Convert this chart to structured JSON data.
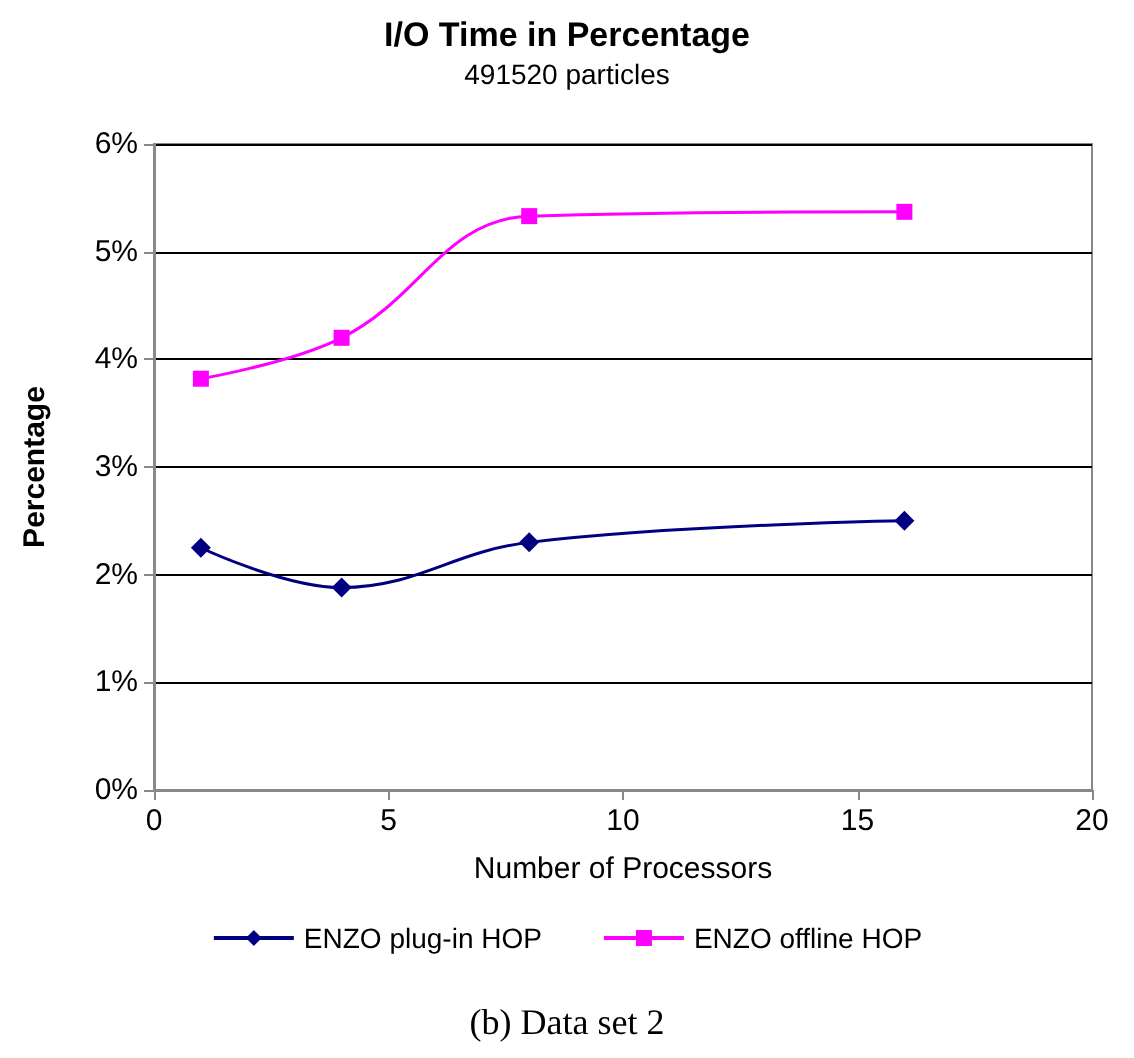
{
  "chart_data": {
    "type": "line",
    "title": "I/O Time in Percentage",
    "subtitle": "491520 particles",
    "xlabel": "Number of Processors",
    "ylabel": "Percentage",
    "x": [
      1,
      4,
      8,
      16
    ],
    "series": [
      {
        "name": "ENZO plug-in HOP",
        "color": "#000080",
        "marker": "diamond",
        "values": [
          2.25,
          1.88,
          2.3,
          2.5
        ]
      },
      {
        "name": "ENZO offline HOP",
        "color": "#ff00ff",
        "marker": "square",
        "values": [
          3.82,
          4.2,
          5.33,
          5.37
        ]
      }
    ],
    "xlim": [
      0,
      20
    ],
    "xticks": [
      0,
      5,
      10,
      15,
      20
    ],
    "ylim": [
      0,
      6
    ],
    "yticks": [
      {
        "value": 0,
        "label": "0%"
      },
      {
        "value": 1,
        "label": "1%"
      },
      {
        "value": 2,
        "label": "2%"
      },
      {
        "value": 3,
        "label": "3%"
      },
      {
        "value": 4,
        "label": "4%"
      },
      {
        "value": 5,
        "label": "5%"
      },
      {
        "value": 6,
        "label": "6%"
      }
    ],
    "grid": "y",
    "legend": "bottom",
    "line_style": "solid",
    "annotations": [
      "(b) Data set 2"
    ]
  }
}
